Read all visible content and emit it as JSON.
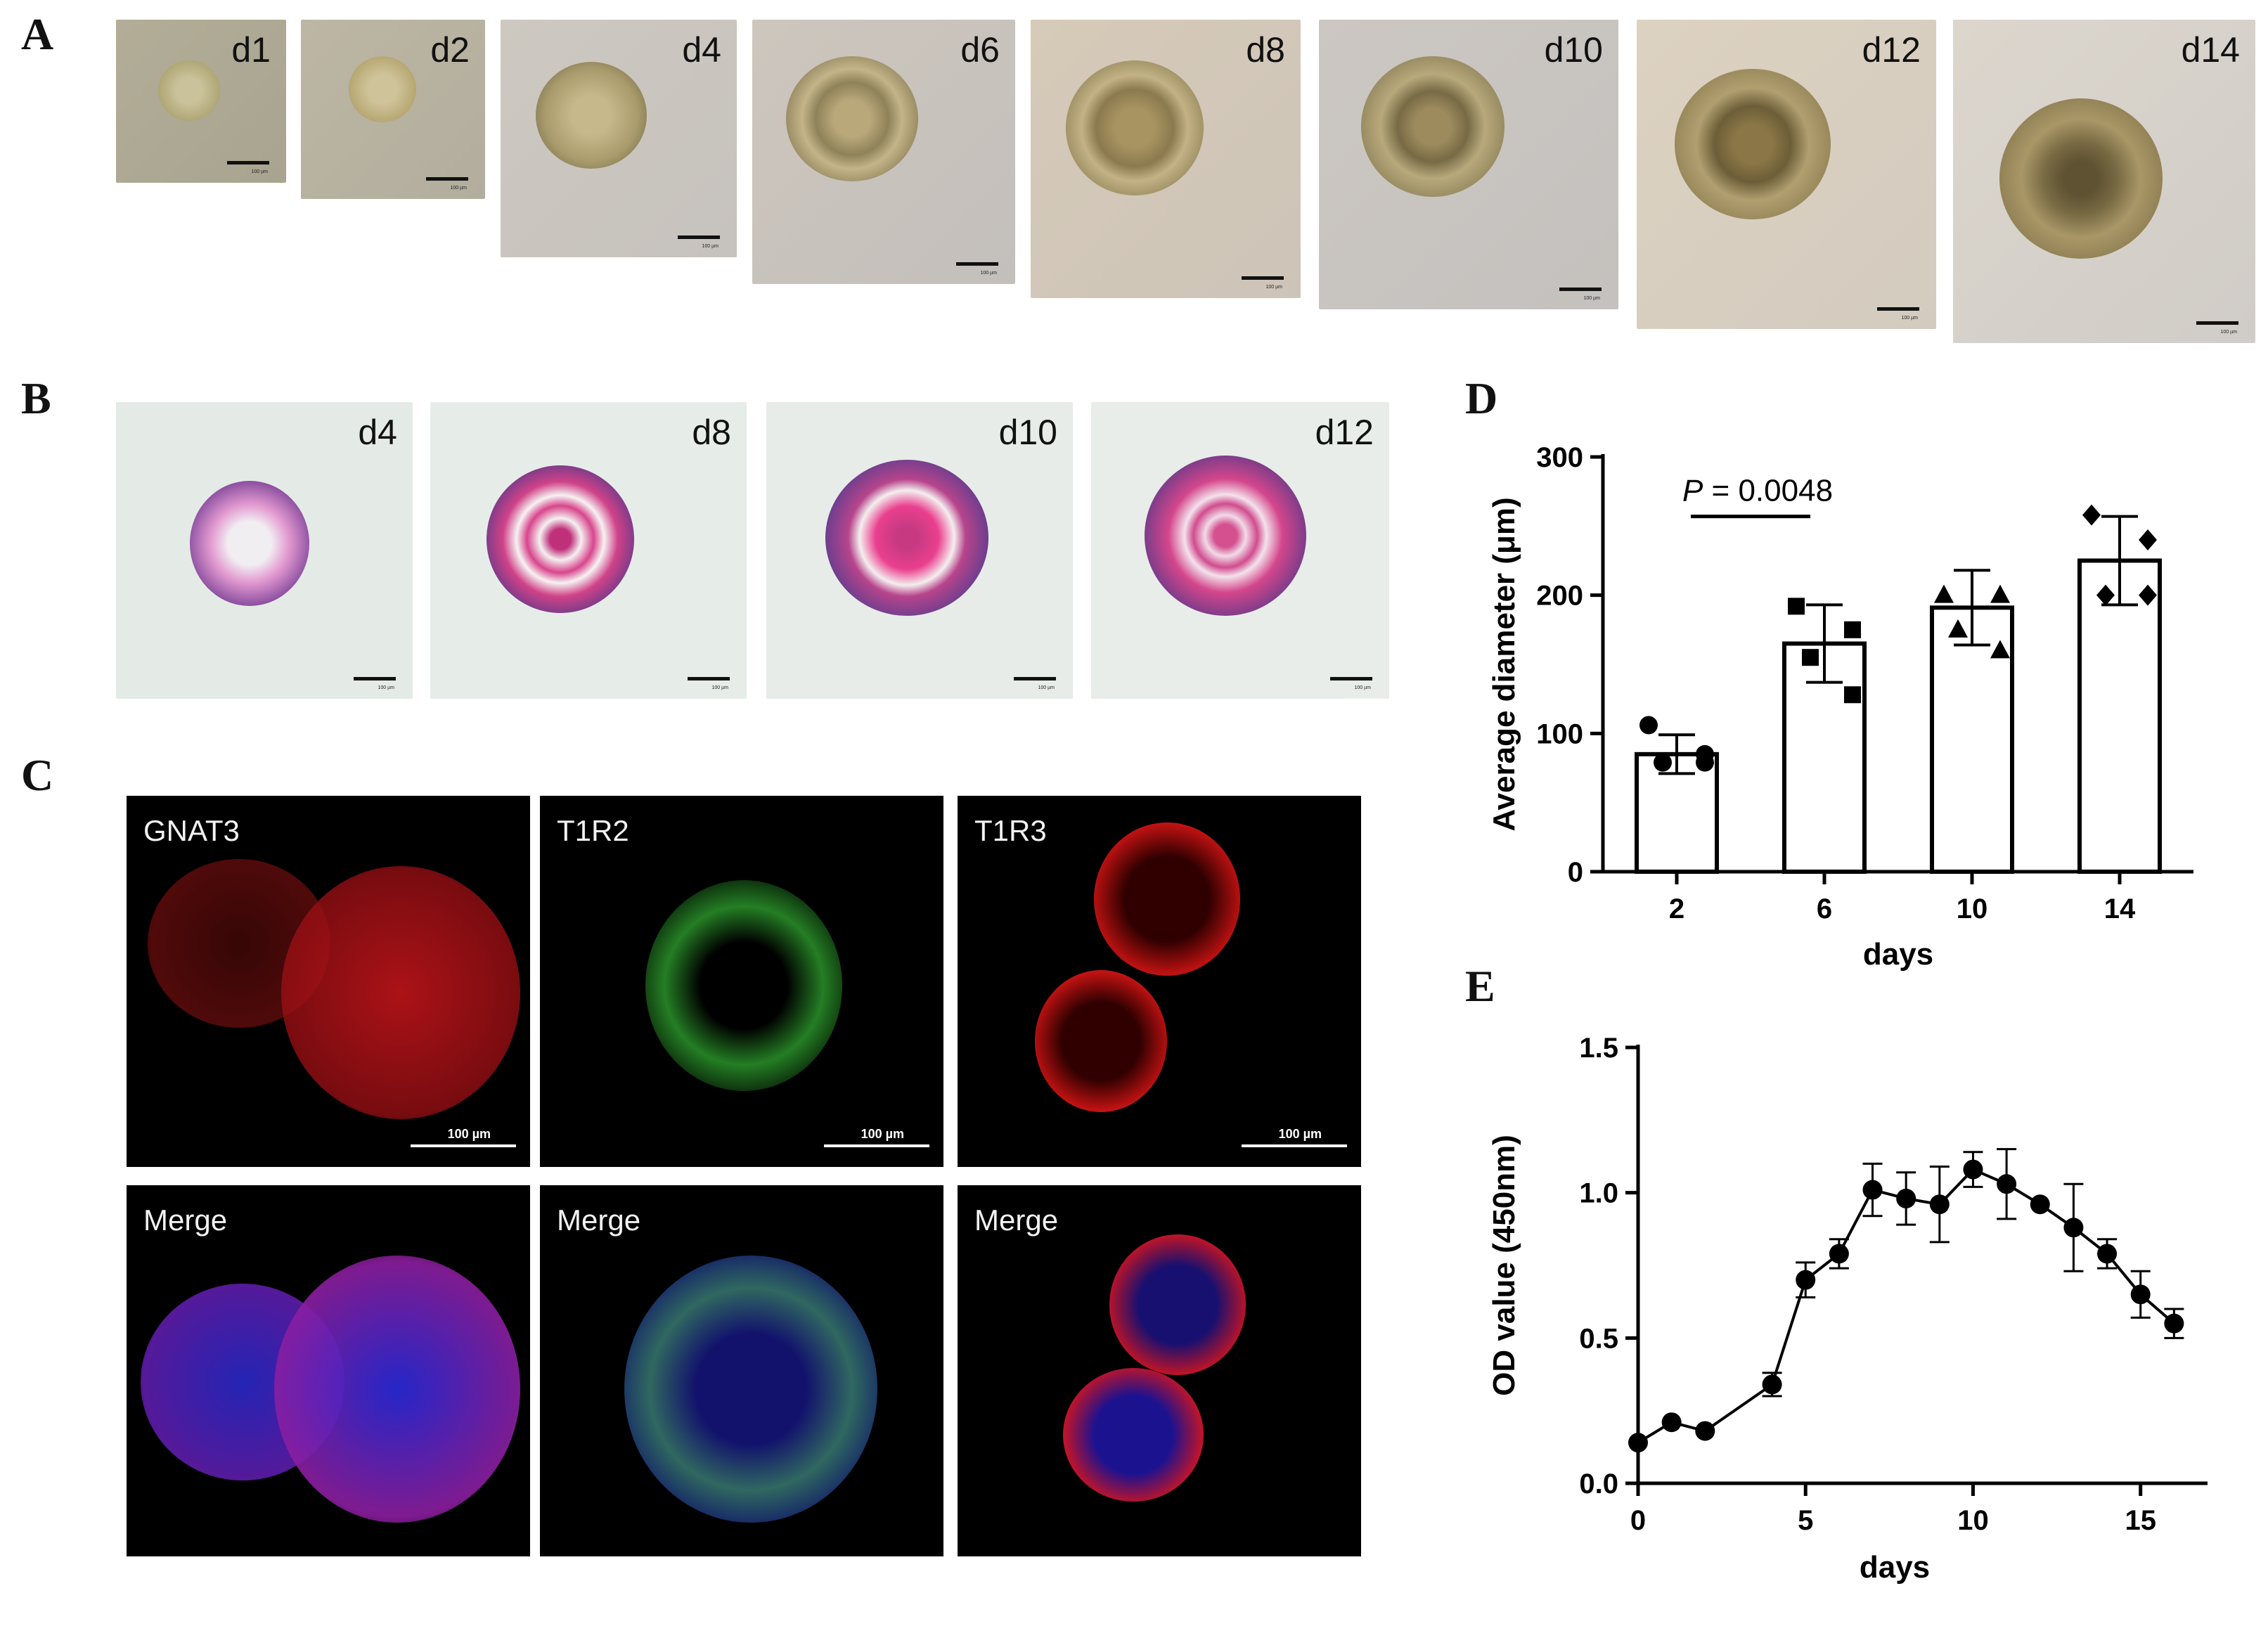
{
  "panels": {
    "A": {
      "letter": "A",
      "images": [
        {
          "label": "d1",
          "scale": "100 µm"
        },
        {
          "label": "d2",
          "scale": "100 µm"
        },
        {
          "label": "d4",
          "scale": "100 µm"
        },
        {
          "label": "d6",
          "scale": "100 µm"
        },
        {
          "label": "d8",
          "scale": "100 µm"
        },
        {
          "label": "d10",
          "scale": "100 µm"
        },
        {
          "label": "d12",
          "scale": "100 µm"
        },
        {
          "label": "d14",
          "scale": "100 µm"
        }
      ]
    },
    "B": {
      "letter": "B",
      "images": [
        {
          "label": "d4",
          "scale": "100 µm"
        },
        {
          "label": "d8",
          "scale": "100 µm"
        },
        {
          "label": "d10",
          "scale": "100 µm"
        },
        {
          "label": "d12",
          "scale": "100 µm"
        }
      ]
    },
    "C": {
      "letter": "C",
      "images": [
        {
          "label": "GNAT3",
          "scale": "100 µm"
        },
        {
          "label": "T1R2",
          "scale": "100 µm"
        },
        {
          "label": "T1R3",
          "scale": "100 µm"
        },
        {
          "label": "Merge"
        },
        {
          "label": "Merge"
        },
        {
          "label": "Merge"
        }
      ]
    },
    "D": {
      "letter": "D"
    },
    "E": {
      "letter": "E"
    }
  },
  "chart_data": [
    {
      "panel": "D",
      "type": "bar",
      "categories": [
        "2",
        "6",
        "10",
        "14"
      ],
      "values": [
        85,
        165,
        191,
        225
      ],
      "errors": [
        14,
        28,
        27,
        32
      ],
      "points": [
        [
          106,
          85,
          79,
          79
        ],
        [
          192,
          175,
          155,
          128
        ],
        [
          200,
          200,
          175,
          160
        ],
        [
          258,
          240,
          200,
          200
        ]
      ],
      "markers": [
        "circle",
        "square",
        "triangle",
        "diamond"
      ],
      "xlabel": "days",
      "ylabel": "Average diameter (μm)",
      "ylim": [
        0,
        300
      ],
      "yticks": [
        "0",
        "100",
        "200",
        "300"
      ],
      "annotation": {
        "p_letter": "P",
        "p_text": " = 0.0048",
        "between": [
          "2",
          "6"
        ]
      },
      "grid": false,
      "legend": "none"
    },
    {
      "panel": "E",
      "type": "line",
      "x": [
        0,
        1,
        2,
        4,
        5,
        6,
        7,
        8,
        9,
        10,
        11,
        12,
        13,
        14,
        15,
        16
      ],
      "y": [
        0.14,
        0.21,
        0.18,
        0.34,
        0.7,
        0.79,
        1.01,
        0.98,
        0.96,
        1.08,
        1.03,
        0.96,
        0.88,
        0.79,
        0.65,
        0.55
      ],
      "err": [
        0.0,
        0.0,
        0.0,
        0.04,
        0.06,
        0.05,
        0.09,
        0.09,
        0.13,
        0.06,
        0.12,
        0.0,
        0.15,
        0.05,
        0.08,
        0.05
      ],
      "xlabel": "days",
      "ylabel": "OD value (450nm)",
      "xlim": [
        0,
        17
      ],
      "ylim": [
        0,
        1.5
      ],
      "xticks": [
        "0",
        "5",
        "10",
        "15"
      ],
      "yticks": [
        "0.0",
        "0.5",
        "1.0",
        "1.5"
      ],
      "grid": false,
      "legend": "none"
    }
  ]
}
